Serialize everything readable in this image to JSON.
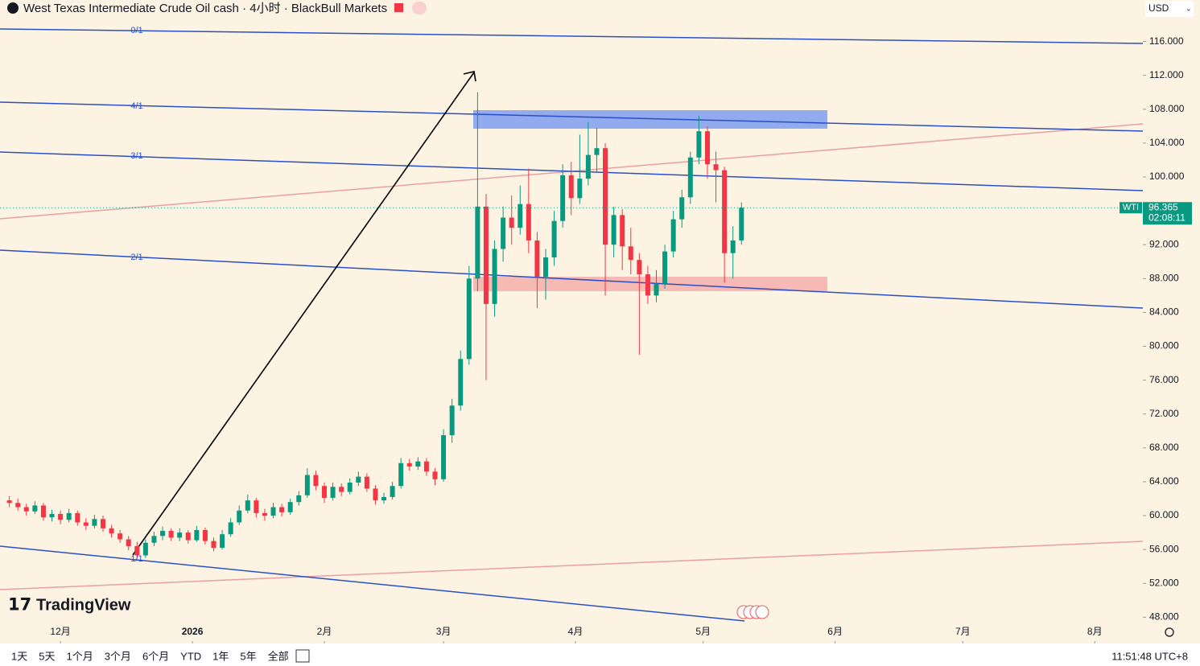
{
  "header": {
    "title": "West Texas Intermediate Crude Oil cash · 4小时 · BlackBull Markets",
    "currency": "USD"
  },
  "chart_data": {
    "type": "candlestick",
    "symbol": "WTI",
    "last_price": 96.365,
    "countdown": "02:08:11",
    "up_color": "#089981",
    "down_color": "#f23645",
    "x": [
      -12,
      -10,
      -8,
      -6,
      -4,
      -2,
      0,
      2,
      4,
      6,
      8,
      10,
      12,
      14,
      16,
      18,
      20,
      22,
      24,
      26,
      28,
      30,
      32,
      34,
      36,
      38,
      40,
      42,
      44,
      46,
      48,
      50,
      52,
      54,
      56,
      58,
      60,
      62,
      64,
      66,
      68,
      70,
      72,
      74,
      76,
      78,
      80,
      82,
      84,
      86,
      88,
      90,
      92,
      94,
      96,
      98,
      100,
      102,
      104,
      106,
      108,
      110,
      112,
      114,
      116,
      118,
      120,
      122,
      124,
      126,
      128,
      130,
      132,
      134,
      136,
      138,
      140,
      142,
      144,
      146,
      148,
      150,
      152,
      154,
      156,
      158,
      160
    ],
    "open": [
      61.8,
      61.5,
      61.0,
      60.5,
      61.2,
      59.8,
      60.2,
      59.5,
      60.3,
      59.2,
      58.8,
      59.6,
      58.5,
      57.9,
      57.2,
      56.4,
      55.3,
      56.8,
      57.6,
      58.2,
      57.4,
      58.0,
      57.1,
      58.3,
      57.0,
      56.2,
      57.8,
      59.2,
      60.6,
      61.8,
      60.3,
      60.0,
      61.0,
      60.4,
      61.6,
      62.4,
      64.8,
      63.5,
      62.1,
      63.4,
      62.8,
      63.9,
      64.6,
      63.2,
      61.8,
      62.2,
      63.5,
      66.2,
      65.8,
      66.4,
      65.2,
      64.3,
      69.5,
      73.0,
      78.5,
      88.0,
      96.5,
      85.0,
      91.5,
      95.2,
      94.0,
      96.8,
      92.5,
      88.2,
      90.5,
      94.8,
      100.2,
      97.5,
      99.8,
      102.6,
      103.4,
      92.0,
      95.5,
      91.8,
      90.2,
      88.5,
      86.0,
      87.4,
      91.2,
      95.0,
      97.6,
      102.3,
      105.4,
      101.5,
      100.8,
      91.0,
      92.5
    ],
    "high": [
      62.3,
      62.0,
      61.4,
      61.7,
      61.5,
      60.7,
      60.6,
      60.8,
      60.6,
      59.7,
      60.1,
      60.0,
      58.9,
      58.3,
      57.6,
      56.9,
      57.2,
      58.1,
      58.7,
      58.5,
      58.5,
      58.3,
      58.8,
      58.6,
      57.4,
      58.3,
      59.7,
      61.2,
      62.5,
      62.1,
      60.8,
      61.5,
      61.4,
      62.0,
      62.9,
      65.6,
      65.3,
      63.9,
      63.9,
      63.8,
      64.4,
      65.2,
      65.0,
      63.6,
      62.7,
      64.0,
      66.8,
      66.7,
      66.9,
      66.8,
      65.6,
      70.2,
      73.8,
      79.5,
      89.5,
      110.0,
      98.0,
      92.5,
      96.5,
      97.8,
      99.0,
      101.0,
      93.5,
      91.5,
      96.0,
      101.5,
      101.8,
      105.0,
      106.5,
      105.8,
      104.0,
      96.5,
      96.2,
      94.0,
      91.0,
      89.5,
      89.0,
      92.0,
      96.0,
      98.5,
      103.0,
      107.2,
      106.0,
      103.0,
      101.2,
      94.2,
      97.0
    ],
    "low": [
      61.0,
      60.6,
      60.0,
      60.2,
      59.4,
      59.3,
      59.0,
      59.2,
      58.8,
      58.3,
      58.5,
      58.1,
      57.4,
      56.8,
      55.9,
      54.9,
      55.0,
      56.4,
      57.1,
      57.0,
      57.0,
      56.7,
      56.9,
      56.6,
      55.8,
      56.0,
      57.5,
      58.9,
      60.3,
      59.8,
      59.4,
      59.7,
      59.9,
      60.1,
      61.2,
      62.1,
      63.0,
      61.5,
      61.8,
      62.3,
      62.5,
      63.5,
      62.8,
      61.3,
      61.4,
      61.9,
      63.2,
      65.3,
      65.4,
      64.7,
      63.6,
      64.0,
      68.6,
      72.4,
      77.8,
      86.5,
      76.0,
      83.5,
      90.0,
      92.0,
      93.2,
      91.0,
      84.5,
      85.5,
      89.5,
      94.0,
      95.5,
      96.8,
      99.0,
      100.5,
      86.0,
      90.5,
      89.0,
      88.5,
      79.0,
      85.0,
      85.2,
      86.8,
      90.5,
      94.0,
      96.8,
      101.5,
      99.8,
      97.0,
      87.5,
      88.0,
      92.0
    ],
    "close": [
      61.5,
      61.0,
      60.5,
      61.2,
      59.8,
      60.2,
      59.5,
      60.3,
      59.2,
      58.8,
      59.6,
      58.5,
      57.9,
      57.2,
      56.4,
      55.3,
      56.8,
      57.6,
      58.2,
      57.4,
      58.0,
      57.1,
      58.3,
      57.0,
      56.2,
      57.8,
      59.2,
      60.6,
      61.8,
      60.3,
      60.0,
      61.0,
      60.4,
      61.6,
      62.4,
      64.8,
      63.5,
      62.1,
      63.4,
      62.8,
      63.9,
      64.6,
      63.2,
      61.8,
      62.2,
      63.5,
      66.2,
      65.8,
      66.4,
      65.2,
      64.3,
      69.5,
      73.0,
      78.5,
      88.0,
      96.5,
      85.0,
      91.5,
      95.2,
      94.0,
      96.8,
      92.5,
      88.2,
      90.5,
      94.8,
      100.2,
      97.5,
      99.8,
      102.6,
      103.4,
      92.0,
      95.5,
      91.8,
      90.2,
      88.5,
      86.0,
      87.4,
      91.2,
      95.0,
      97.6,
      102.3,
      105.4,
      101.5,
      100.8,
      91.0,
      92.5,
      96.365
    ],
    "xlim": [
      -14.2,
      254.3
    ],
    "xticks": [
      {
        "value": 0,
        "label": "12月"
      },
      {
        "value": 31,
        "label": "2026"
      },
      {
        "value": 62,
        "label": "2月"
      },
      {
        "value": 90,
        "label": "3月"
      },
      {
        "value": 121,
        "label": "4月"
      },
      {
        "value": 151,
        "label": "5月"
      },
      {
        "value": 182,
        "label": "6月"
      },
      {
        "value": 212,
        "label": "7月"
      },
      {
        "value": 243,
        "label": "8月"
      }
    ],
    "ylim": [
      44.9,
      120.9
    ],
    "yticks": [
      {
        "value": 116,
        "label": "116.000"
      },
      {
        "value": 112,
        "label": "112.000"
      },
      {
        "value": 108,
        "label": "108.000"
      },
      {
        "value": 104,
        "label": "104.000"
      },
      {
        "value": 100,
        "label": "100.000"
      },
      {
        "value": 96,
        "label": "96.000"
      },
      {
        "value": 92,
        "label": "92.000"
      },
      {
        "value": 88,
        "label": "88.000"
      },
      {
        "value": 84,
        "label": "84.000"
      },
      {
        "value": 80,
        "label": "80.000"
      },
      {
        "value": 76,
        "label": "76.000"
      },
      {
        "value": 72,
        "label": "72.000"
      },
      {
        "value": 68,
        "label": "68.000"
      },
      {
        "value": 64,
        "label": "64.000"
      },
      {
        "value": 60,
        "label": "60.000"
      },
      {
        "value": 56,
        "label": "56.000"
      },
      {
        "value": 52,
        "label": "52.000"
      },
      {
        "value": 48,
        "label": "48.000"
      }
    ],
    "fan_labels": [
      "0/1",
      "4/1",
      "3/1",
      "2/1",
      "1/1"
    ]
  },
  "watermark": "TradingView",
  "toolbar": {
    "ranges": [
      "1天",
      "5天",
      "1个月",
      "3个月",
      "6个月",
      "YTD",
      "1年",
      "5年",
      "全部"
    ],
    "clock": "11:51:48 UTC+8"
  }
}
